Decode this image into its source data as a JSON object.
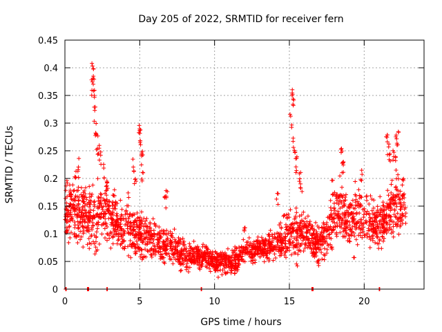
{
  "chart_data": {
    "type": "scatter",
    "title": "Day 205 of 2022, SRMTID for receiver fern",
    "xlabel": "GPS time / hours",
    "ylabel": "SRMTID / TECUs",
    "xlim": [
      0,
      24
    ],
    "ylim": [
      0,
      0.45
    ],
    "xticks": [
      0,
      5,
      10,
      15,
      20
    ],
    "xtick_labels": [
      "0",
      "5",
      "10",
      "15",
      "20"
    ],
    "yticks": [
      0,
      0.05,
      0.1,
      0.15,
      0.2,
      0.25,
      0.3,
      0.35,
      0.4,
      0.45
    ],
    "ytick_labels": [
      "0",
      "0.05",
      "0.1",
      "0.15",
      "0.2",
      "0.25",
      "0.3",
      "0.35",
      "0.4",
      "0.45"
    ],
    "grid": true,
    "marker": "plus",
    "color": "#ff0000",
    "x_range_data": [
      0,
      22.8
    ],
    "envelope": {
      "x": [
        0,
        0.5,
        1,
        1.5,
        2,
        2.5,
        3,
        3.5,
        4,
        4.5,
        5,
        5.5,
        6,
        6.5,
        7,
        7.5,
        8,
        8.5,
        9,
        9.5,
        10,
        10.5,
        11,
        11.5,
        12,
        12.5,
        13,
        13.5,
        14,
        14.5,
        15,
        15.5,
        16,
        16.5,
        17,
        17.5,
        18,
        18.5,
        19,
        19.5,
        20,
        20.5,
        21,
        21.5,
        22,
        22.5,
        22.8
      ],
      "center": [
        0.13,
        0.14,
        0.13,
        0.14,
        0.12,
        0.15,
        0.13,
        0.12,
        0.11,
        0.1,
        0.1,
        0.09,
        0.09,
        0.08,
        0.08,
        0.07,
        0.06,
        0.06,
        0.06,
        0.06,
        0.05,
        0.05,
        0.05,
        0.05,
        0.07,
        0.07,
        0.07,
        0.08,
        0.08,
        0.09,
        0.1,
        0.1,
        0.1,
        0.09,
        0.08,
        0.1,
        0.13,
        0.14,
        0.12,
        0.13,
        0.14,
        0.12,
        0.11,
        0.13,
        0.15,
        0.15,
        0.14
      ],
      "spread": [
        0.04,
        0.045,
        0.05,
        0.045,
        0.06,
        0.055,
        0.045,
        0.04,
        0.035,
        0.04,
        0.04,
        0.03,
        0.03,
        0.03,
        0.025,
        0.025,
        0.025,
        0.02,
        0.02,
        0.02,
        0.02,
        0.02,
        0.02,
        0.02,
        0.02,
        0.02,
        0.02,
        0.02,
        0.025,
        0.03,
        0.04,
        0.04,
        0.035,
        0.03,
        0.035,
        0.04,
        0.045,
        0.05,
        0.04,
        0.045,
        0.04,
        0.035,
        0.04,
        0.045,
        0.05,
        0.04,
        0.04
      ]
    },
    "spikes": [
      {
        "x": 0.1,
        "y": 0.2
      },
      {
        "x": 0.35,
        "y": 0.19
      },
      {
        "x": 0.7,
        "y": 0.22
      },
      {
        "x": 0.9,
        "y": 0.24
      },
      {
        "x": 1.2,
        "y": 0.18
      },
      {
        "x": 1.8,
        "y": 0.38
      },
      {
        "x": 1.85,
        "y": 0.41
      },
      {
        "x": 1.9,
        "y": 0.4
      },
      {
        "x": 1.95,
        "y": 0.37
      },
      {
        "x": 2.0,
        "y": 0.33
      },
      {
        "x": 2.05,
        "y": 0.3
      },
      {
        "x": 2.15,
        "y": 0.28
      },
      {
        "x": 2.25,
        "y": 0.27
      },
      {
        "x": 2.35,
        "y": 0.25
      },
      {
        "x": 2.6,
        "y": 0.23
      },
      {
        "x": 2.8,
        "y": 0.2
      },
      {
        "x": 3.3,
        "y": 0.18
      },
      {
        "x": 4.2,
        "y": 0.18
      },
      {
        "x": 4.6,
        "y": 0.24
      },
      {
        "x": 4.7,
        "y": 0.22
      },
      {
        "x": 5.0,
        "y": 0.3
      },
      {
        "x": 5.05,
        "y": 0.29
      },
      {
        "x": 5.1,
        "y": 0.27
      },
      {
        "x": 5.15,
        "y": 0.25
      },
      {
        "x": 5.2,
        "y": 0.22
      },
      {
        "x": 6.7,
        "y": 0.17
      },
      {
        "x": 6.8,
        "y": 0.18
      },
      {
        "x": 12.0,
        "y": 0.12
      },
      {
        "x": 14.2,
        "y": 0.18
      },
      {
        "x": 15.1,
        "y": 0.32
      },
      {
        "x": 15.2,
        "y": 0.37
      },
      {
        "x": 15.25,
        "y": 0.36
      },
      {
        "x": 15.3,
        "y": 0.28
      },
      {
        "x": 15.4,
        "y": 0.25
      },
      {
        "x": 15.5,
        "y": 0.24
      },
      {
        "x": 15.7,
        "y": 0.22
      },
      {
        "x": 15.8,
        "y": 0.2
      },
      {
        "x": 17.9,
        "y": 0.2
      },
      {
        "x": 18.5,
        "y": 0.26
      },
      {
        "x": 18.55,
        "y": 0.24
      },
      {
        "x": 18.6,
        "y": 0.23
      },
      {
        "x": 19.8,
        "y": 0.22
      },
      {
        "x": 21.5,
        "y": 0.28
      },
      {
        "x": 21.6,
        "y": 0.27
      },
      {
        "x": 21.7,
        "y": 0.25
      },
      {
        "x": 21.95,
        "y": 0.26
      },
      {
        "x": 22.15,
        "y": 0.28
      },
      {
        "x": 22.25,
        "y": 0.285
      },
      {
        "x": 22.1,
        "y": 0.24
      },
      {
        "x": 22.6,
        "y": 0.2
      }
    ],
    "low_points": [
      {
        "x": 0.05,
        "y": 0.0
      },
      {
        "x": 1.5,
        "y": 0.0
      },
      {
        "x": 1.55,
        "y": 0.0
      },
      {
        "x": 2.8,
        "y": 0.0
      },
      {
        "x": 9.1,
        "y": 0.0
      },
      {
        "x": 16.5,
        "y": 0.0
      },
      {
        "x": 16.55,
        "y": 0.0
      },
      {
        "x": 21.0,
        "y": 0.0
      },
      {
        "x": 19.3,
        "y": 0.057
      }
    ]
  }
}
